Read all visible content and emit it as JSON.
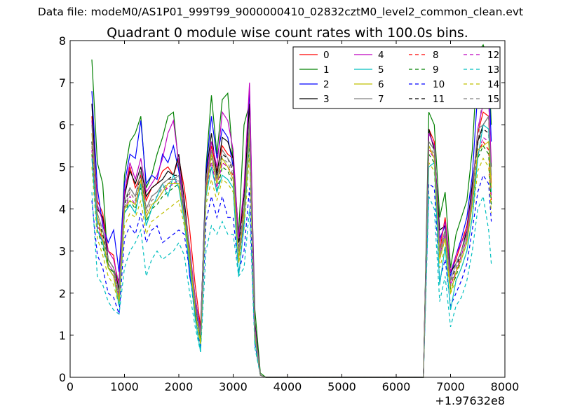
{
  "suptitle": "Data file: modeM0/AS1P01_999T99_9000000410_02832cztM0_level2_common_clean.evt",
  "chart_data": {
    "type": "line",
    "title": "Quadrant 0 module wise count rates with 100.0s bins.",
    "xlabel": "",
    "ylabel": "",
    "offset_text": "+1.97632e8",
    "xlim": [
      0,
      8000
    ],
    "ylim": [
      0,
      8
    ],
    "xticks": [
      "0",
      "1000",
      "2000",
      "3000",
      "4000",
      "5000",
      "6000",
      "7000",
      "8000"
    ],
    "yticks": [
      "0",
      "1",
      "2",
      "3",
      "4",
      "5",
      "6",
      "7",
      "8"
    ],
    "grid": false,
    "legend_position": "top-right",
    "legend_columns": 4,
    "colors": [
      "#ff0000",
      "#008000",
      "#0000ff",
      "#000000",
      "#bf00bf",
      "#00bfbf",
      "#bfbf00",
      "#808080"
    ],
    "series": [
      {
        "name": "0",
        "style": "solid",
        "color": "#ff0000",
        "values": [
          6.2,
          4.2,
          3.9,
          3.0,
          2.9,
          2.0,
          4.4,
          5.0,
          4.5,
          4.8,
          4.2,
          4.5,
          4.6,
          4.9,
          5.0,
          4.8,
          5.2,
          4.5,
          3.5,
          2.2,
          1.2,
          4.5,
          5.5,
          4.9,
          5.5,
          5.3,
          5.2,
          3.4,
          4.0,
          5.8,
          1.2,
          0.05,
          0.0,
          0.0,
          5.9,
          5.6,
          3.0,
          3.8,
          2.5,
          2.8,
          3.2,
          3.6,
          4.5,
          5.8,
          6.3,
          6.2,
          4.6
        ]
      },
      {
        "name": "1",
        "style": "solid",
        "color": "#008000",
        "values": [
          7.55,
          5.1,
          4.6,
          2.6,
          2.5,
          2.3,
          4.8,
          5.6,
          5.8,
          6.2,
          4.5,
          4.8,
          5.3,
          5.7,
          6.2,
          6.3,
          5.0,
          4.0,
          2.8,
          1.5,
          0.9,
          5.0,
          6.7,
          5.3,
          6.6,
          6.75,
          5.1,
          3.4,
          6.0,
          6.5,
          1.6,
          0.1,
          0.0,
          0.0,
          6.3,
          6.0,
          3.8,
          4.4,
          2.6,
          3.4,
          3.8,
          4.2,
          5.4,
          7.7,
          7.9,
          7.5,
          6.0
        ]
      },
      {
        "name": "2",
        "style": "solid",
        "color": "#0000ff",
        "values": [
          6.8,
          4.5,
          3.6,
          3.2,
          3.5,
          2.5,
          4.6,
          5.3,
          5.2,
          6.1,
          4.6,
          4.8,
          4.7,
          5.3,
          5.1,
          5.5,
          4.9,
          3.9,
          2.4,
          1.7,
          1.0,
          4.9,
          6.2,
          5.2,
          5.9,
          5.7,
          5.0,
          2.8,
          3.7,
          6.9,
          1.1,
          0.05,
          0.0,
          0.0,
          5.8,
          5.5,
          3.3,
          3.6,
          2.4,
          2.9,
          3.3,
          3.8,
          4.8,
          6.8,
          7.6,
          7.2,
          5.6
        ]
      },
      {
        "name": "3",
        "style": "solid",
        "color": "#000000",
        "values": [
          6.5,
          4.0,
          3.8,
          2.8,
          2.6,
          2.1,
          4.3,
          4.9,
          4.6,
          5.0,
          4.3,
          4.5,
          4.6,
          4.7,
          4.9,
          4.8,
          5.3,
          4.2,
          3.0,
          1.9,
          1.1,
          4.8,
          5.8,
          4.8,
          5.7,
          5.6,
          5.2,
          3.2,
          4.3,
          6.5,
          1.3,
          0.05,
          0.0,
          0.0,
          5.9,
          5.4,
          3.5,
          3.6,
          2.5,
          2.7,
          3.0,
          3.5,
          4.6,
          5.6,
          6.0,
          6.2,
          5.0
        ]
      },
      {
        "name": "4",
        "style": "solid",
        "color": "#bf00bf",
        "values": [
          6.1,
          4.1,
          3.7,
          3.0,
          2.8,
          2.2,
          4.4,
          5.1,
          4.7,
          5.2,
          4.4,
          4.6,
          4.8,
          5.2,
          5.8,
          6.1,
          5.1,
          4.0,
          3.1,
          1.9,
          1.1,
          4.6,
          5.6,
          5.0,
          6.3,
          6.1,
          5.4,
          3.3,
          4.5,
          7.0,
          1.2,
          0.05,
          0.0,
          0.0,
          5.8,
          5.5,
          3.2,
          3.7,
          2.5,
          2.9,
          3.2,
          3.5,
          4.4,
          5.9,
          6.5,
          6.6,
          5.1
        ]
      },
      {
        "name": "5",
        "style": "solid",
        "color": "#00bfbf",
        "values": [
          5.2,
          3.5,
          3.2,
          2.6,
          2.4,
          1.7,
          3.9,
          4.1,
          3.9,
          4.6,
          3.6,
          4.0,
          4.3,
          4.6,
          4.3,
          4.8,
          4.5,
          3.7,
          2.6,
          1.4,
          0.6,
          4.3,
          5.0,
          4.4,
          4.8,
          4.7,
          4.5,
          2.4,
          3.6,
          5.8,
          0.9,
          0.05,
          0.0,
          0.0,
          5.0,
          5.1,
          2.2,
          3.1,
          1.6,
          2.3,
          2.6,
          3.0,
          3.8,
          5.2,
          6.0,
          5.9,
          4.4
        ]
      },
      {
        "name": "6",
        "style": "solid",
        "color": "#bfbf00",
        "values": [
          5.8,
          3.8,
          3.3,
          2.6,
          2.4,
          1.8,
          4.0,
          4.2,
          4.1,
          4.7,
          3.8,
          4.1,
          4.2,
          4.4,
          4.6,
          4.6,
          4.6,
          3.8,
          2.8,
          1.6,
          0.8,
          4.4,
          5.3,
          4.6,
          5.2,
          5.0,
          4.7,
          2.8,
          3.8,
          5.9,
          1.0,
          0.05,
          0.0,
          0.0,
          5.5,
          5.2,
          2.8,
          3.3,
          2.0,
          2.5,
          2.8,
          3.2,
          4.1,
          5.4,
          5.5,
          5.6,
          4.5
        ]
      },
      {
        "name": "7",
        "style": "solid",
        "color": "#808080",
        "values": [
          6.0,
          3.9,
          3.5,
          2.8,
          2.6,
          2.0,
          4.2,
          4.5,
          4.3,
          4.9,
          4.0,
          4.3,
          4.4,
          4.6,
          4.7,
          4.7,
          4.8,
          4.0,
          3.0,
          1.8,
          1.0,
          4.6,
          5.4,
          4.7,
          5.4,
          5.2,
          5.0,
          3.0,
          4.0,
          6.1,
          1.1,
          0.05,
          0.0,
          0.0,
          5.6,
          5.4,
          3.0,
          3.5,
          2.3,
          2.7,
          3.0,
          3.4,
          4.3,
          5.9,
          6.0,
          6.2,
          4.8
        ]
      },
      {
        "name": "8",
        "style": "dashed",
        "color": "#ff0000",
        "values": [
          5.5,
          3.7,
          3.2,
          2.7,
          2.5,
          1.9,
          4.0,
          4.4,
          4.2,
          4.7,
          3.9,
          4.2,
          4.3,
          4.5,
          4.5,
          4.6,
          4.7,
          3.9,
          2.9,
          1.7,
          0.9,
          4.5,
          5.2,
          4.6,
          5.1,
          5.0,
          4.8,
          3.0,
          3.9,
          5.8,
          1.0,
          0.05,
          0.0,
          0.0,
          5.4,
          5.3,
          2.9,
          3.4,
          2.2,
          2.5,
          2.9,
          3.3,
          4.2,
          5.3,
          5.6,
          5.4,
          4.2
        ]
      },
      {
        "name": "9",
        "style": "dashed",
        "color": "#008000",
        "values": [
          5.3,
          3.5,
          3.1,
          2.6,
          2.4,
          1.8,
          3.9,
          4.2,
          4.0,
          4.5,
          3.7,
          4.0,
          4.1,
          4.3,
          4.4,
          4.5,
          4.6,
          3.8,
          2.8,
          1.6,
          0.8,
          4.3,
          5.0,
          4.4,
          5.0,
          4.9,
          4.6,
          2.9,
          3.7,
          5.6,
          1.0,
          0.05,
          0.0,
          0.0,
          5.3,
          5.1,
          2.8,
          3.3,
          2.1,
          2.4,
          2.8,
          3.2,
          4.1,
          5.2,
          5.5,
          5.3,
          4.1
        ]
      },
      {
        "name": "10",
        "style": "dashed",
        "color": "#0000ff",
        "values": [
          4.2,
          2.9,
          2.6,
          2.0,
          1.9,
          1.5,
          3.3,
          3.6,
          3.4,
          3.9,
          3.2,
          3.5,
          3.6,
          3.2,
          3.3,
          3.4,
          3.5,
          3.4,
          2.5,
          1.4,
          0.7,
          3.7,
          4.3,
          3.8,
          4.3,
          3.8,
          3.8,
          2.5,
          3.0,
          4.5,
          0.8,
          0.05,
          0.0,
          0.0,
          4.6,
          4.5,
          2.3,
          2.8,
          1.7,
          2.0,
          2.3,
          2.7,
          3.5,
          4.4,
          4.8,
          4.6,
          3.7
        ]
      },
      {
        "name": "11",
        "style": "dashed",
        "color": "#000000",
        "values": [
          5.6,
          3.8,
          3.4,
          2.8,
          2.6,
          2.0,
          4.1,
          4.5,
          4.3,
          4.8,
          4.0,
          4.3,
          4.4,
          4.6,
          4.7,
          4.8,
          4.8,
          4.0,
          3.0,
          1.8,
          1.0,
          4.6,
          5.4,
          4.7,
          5.3,
          5.2,
          4.9,
          3.1,
          4.0,
          6.0,
          1.1,
          0.05,
          0.0,
          0.0,
          5.6,
          5.4,
          3.0,
          3.5,
          2.3,
          2.6,
          3.0,
          3.4,
          4.3,
          5.6,
          5.9,
          5.8,
          4.6
        ]
      },
      {
        "name": "12",
        "style": "dashed",
        "color": "#bf00bf",
        "values": [
          5.4,
          3.6,
          3.2,
          2.7,
          2.5,
          1.9,
          4.0,
          4.3,
          4.1,
          4.6,
          3.8,
          4.1,
          4.2,
          4.4,
          4.5,
          4.6,
          4.7,
          3.9,
          2.9,
          1.7,
          0.9,
          4.4,
          5.1,
          4.5,
          5.1,
          5.0,
          4.7,
          3.0,
          3.8,
          5.7,
          1.0,
          0.05,
          0.0,
          0.0,
          5.4,
          5.2,
          2.9,
          3.4,
          2.2,
          2.5,
          2.9,
          3.3,
          4.2,
          5.3,
          5.7,
          5.6,
          4.3
        ]
      },
      {
        "name": "13",
        "style": "dashed",
        "color": "#00bfbf",
        "values": [
          4.4,
          2.4,
          2.2,
          1.8,
          1.6,
          1.5,
          2.6,
          3.0,
          3.2,
          3.5,
          2.4,
          2.8,
          3.0,
          2.8,
          2.9,
          3.0,
          3.2,
          2.9,
          2.0,
          1.2,
          0.6,
          3.0,
          3.6,
          3.4,
          3.7,
          3.4,
          3.4,
          2.4,
          2.6,
          4.0,
          0.7,
          0.05,
          0.0,
          0.0,
          4.3,
          4.0,
          1.8,
          2.4,
          1.2,
          1.7,
          1.9,
          2.3,
          3.0,
          4.0,
          4.3,
          3.5,
          2.7
        ]
      },
      {
        "name": "14",
        "style": "dashed",
        "color": "#bfbf00",
        "values": [
          5.0,
          3.3,
          2.9,
          2.4,
          2.2,
          1.7,
          3.6,
          3.9,
          3.8,
          4.2,
          3.4,
          3.7,
          3.8,
          3.9,
          4.0,
          4.1,
          4.2,
          3.6,
          2.7,
          1.5,
          0.8,
          4.1,
          4.7,
          4.2,
          4.7,
          4.6,
          4.4,
          2.7,
          3.5,
          5.3,
          0.9,
          0.05,
          0.0,
          0.0,
          5.1,
          4.9,
          2.6,
          3.1,
          2.0,
          2.3,
          2.6,
          3.0,
          3.8,
          4.9,
          5.2,
          5.0,
          3.9
        ]
      },
      {
        "name": "15",
        "style": "dashed",
        "color": "#808080",
        "values": [
          5.5,
          3.7,
          3.3,
          2.7,
          2.5,
          1.9,
          4.0,
          4.4,
          4.2,
          4.7,
          3.9,
          4.2,
          4.3,
          4.5,
          4.6,
          4.7,
          4.7,
          3.9,
          2.9,
          1.7,
          0.9,
          4.5,
          5.2,
          4.6,
          5.2,
          5.1,
          4.8,
          3.0,
          3.9,
          5.9,
          1.0,
          0.05,
          0.0,
          0.0,
          5.5,
          5.3,
          2.9,
          3.4,
          2.2,
          2.6,
          2.9,
          3.3,
          4.2,
          5.5,
          6.9,
          6.7,
          4.5
        ]
      }
    ],
    "x": [
      400,
      500,
      600,
      700,
      800,
      900,
      1000,
      1100,
      1200,
      1300,
      1400,
      1500,
      1600,
      1700,
      1800,
      1900,
      2000,
      2100,
      2200,
      2300,
      2400,
      2500,
      2600,
      2700,
      2800,
      2900,
      3000,
      3100,
      3200,
      3300,
      3400,
      3500,
      3600,
      6500,
      6600,
      6700,
      6800,
      6900,
      7000,
      7100,
      7200,
      7300,
      7400,
      7500,
      7600,
      7700,
      7750
    ]
  }
}
